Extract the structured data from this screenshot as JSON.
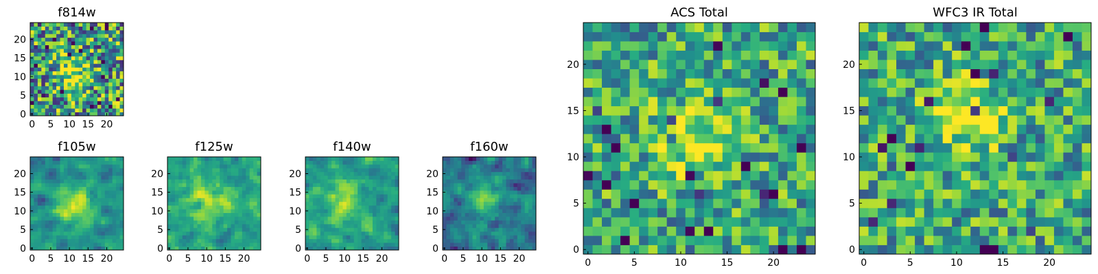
{
  "chart_data": [
    {
      "type": "heatmap",
      "title": "f814w",
      "grid_size": 25,
      "xticks": [
        0,
        5,
        10,
        15,
        20
      ],
      "yticks": [
        0,
        5,
        10,
        15,
        20
      ],
      "xlim": [
        0,
        24
      ],
      "ylim": [
        0,
        24
      ],
      "colormap": "viridis",
      "seed": 17,
      "blob_center": [
        11,
        11
      ],
      "blob_sigma": 3.2,
      "blob_strength": 0.35,
      "noise": 0.55,
      "base": 0.55
    },
    {
      "type": "heatmap",
      "title": "f105w",
      "grid_size": 25,
      "xticks": [
        0,
        5,
        10,
        15,
        20
      ],
      "yticks": [
        0,
        5,
        10,
        15,
        20
      ],
      "xlim": [
        0,
        24
      ],
      "ylim": [
        0,
        24
      ],
      "colormap": "viridis",
      "seed": 29,
      "blob_center": [
        11,
        12
      ],
      "blob_sigma": 3.5,
      "blob_strength": 0.4,
      "noise": 0.4,
      "base": 0.55,
      "smooth": true
    },
    {
      "type": "heatmap",
      "title": "f125w",
      "grid_size": 25,
      "xticks": [
        0,
        5,
        10,
        15,
        20
      ],
      "yticks": [
        0,
        5,
        10,
        15,
        20
      ],
      "xlim": [
        0,
        24
      ],
      "ylim": [
        0,
        24
      ],
      "colormap": "viridis",
      "seed": 41,
      "blob_center": [
        11,
        13
      ],
      "blob_sigma": 4.0,
      "blob_strength": 0.25,
      "noise": 0.45,
      "base": 0.6,
      "smooth": true
    },
    {
      "type": "heatmap",
      "title": "f140w",
      "grid_size": 25,
      "xticks": [
        0,
        5,
        10,
        15,
        20
      ],
      "yticks": [
        0,
        5,
        10,
        15,
        20
      ],
      "xlim": [
        0,
        24
      ],
      "ylim": [
        0,
        24
      ],
      "colormap": "viridis",
      "seed": 53,
      "blob_center": [
        10,
        12
      ],
      "blob_sigma": 4.0,
      "blob_strength": 0.25,
      "noise": 0.45,
      "base": 0.58,
      "smooth": true
    },
    {
      "type": "heatmap",
      "title": "f160w",
      "grid_size": 25,
      "xticks": [
        0,
        5,
        10,
        15,
        20
      ],
      "yticks": [
        0,
        5,
        10,
        15,
        20
      ],
      "xlim": [
        0,
        24
      ],
      "ylim": [
        0,
        24
      ],
      "colormap": "viridis",
      "seed": 67,
      "blob_center": [
        10,
        13
      ],
      "blob_sigma": 3.0,
      "blob_strength": 0.4,
      "noise": 0.45,
      "base": 0.45,
      "smooth": true
    },
    {
      "type": "heatmap",
      "title": "ACS Total",
      "grid_size": 25,
      "xticks": [
        0,
        5,
        10,
        15,
        20
      ],
      "yticks": [
        0,
        5,
        10,
        15,
        20
      ],
      "xlim": [
        0,
        24
      ],
      "ylim": [
        0,
        24
      ],
      "colormap": "viridis",
      "seed": 83,
      "blob_center": [
        11,
        12
      ],
      "blob_sigma": 2.8,
      "blob_strength": 0.35,
      "noise": 0.4,
      "base": 0.6
    },
    {
      "type": "heatmap",
      "title": "WFC3 IR Total",
      "grid_size": 25,
      "xticks": [
        0,
        5,
        10,
        15,
        20
      ],
      "yticks": [
        0,
        5,
        10,
        15,
        20
      ],
      "xlim": [
        0,
        24
      ],
      "ylim": [
        0,
        24
      ],
      "colormap": "viridis",
      "seed": 97,
      "blob_center": [
        11,
        14
      ],
      "blob_sigma": 2.8,
      "blob_strength": 0.35,
      "noise": 0.4,
      "base": 0.6
    }
  ]
}
